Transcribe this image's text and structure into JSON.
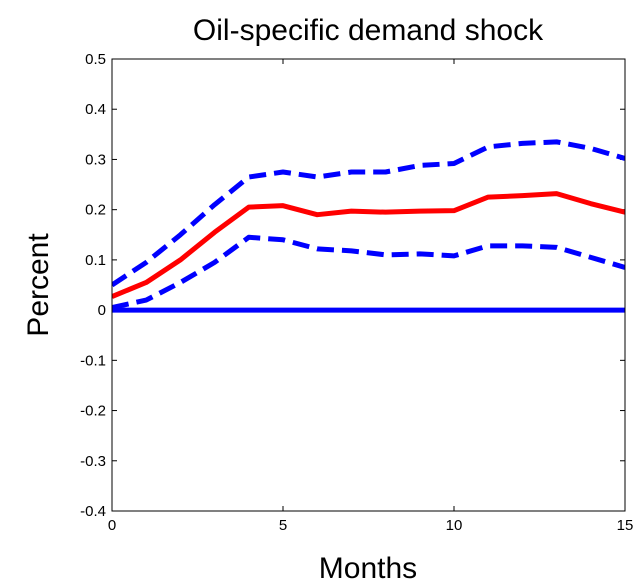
{
  "chart_data": {
    "type": "line",
    "title": "Oil-specific demand shock",
    "xlabel": "Months",
    "ylabel": "Percent",
    "xlim": [
      0,
      15
    ],
    "ylim": [
      -0.4,
      0.5
    ],
    "xticks": [
      0,
      5,
      10,
      15
    ],
    "yticks": [
      -0.4,
      -0.3,
      -0.2,
      -0.1,
      0,
      0.1,
      0.2,
      0.3,
      0.4,
      0.5
    ],
    "grid": false,
    "legend": "none",
    "x": [
      0,
      1,
      2,
      3,
      4,
      5,
      6,
      7,
      8,
      9,
      10,
      11,
      12,
      13,
      14,
      15
    ],
    "series": [
      {
        "role": "upper-band",
        "style": "dashed",
        "color": "#0000ff",
        "values": [
          0.05,
          0.095,
          0.15,
          0.21,
          0.265,
          0.275,
          0.265,
          0.275,
          0.275,
          0.288,
          0.292,
          0.325,
          0.332,
          0.335,
          0.322,
          0.302
        ]
      },
      {
        "role": "point-estimate",
        "style": "solid",
        "color": "#ff0000",
        "values": [
          0.027,
          0.055,
          0.1,
          0.155,
          0.205,
          0.208,
          0.19,
          0.197,
          0.195,
          0.197,
          0.198,
          0.225,
          0.228,
          0.232,
          0.212,
          0.195
        ]
      },
      {
        "role": "lower-band",
        "style": "dashed",
        "color": "#0000ff",
        "values": [
          0.005,
          0.02,
          0.055,
          0.095,
          0.145,
          0.14,
          0.122,
          0.118,
          0.11,
          0.112,
          0.108,
          0.128,
          0.128,
          0.125,
          0.105,
          0.085
        ]
      },
      {
        "role": "zero-line",
        "style": "solid",
        "color": "#0000ff",
        "values": [
          0,
          0,
          0,
          0,
          0,
          0,
          0,
          0,
          0,
          0,
          0,
          0,
          0,
          0,
          0,
          0
        ]
      }
    ]
  }
}
